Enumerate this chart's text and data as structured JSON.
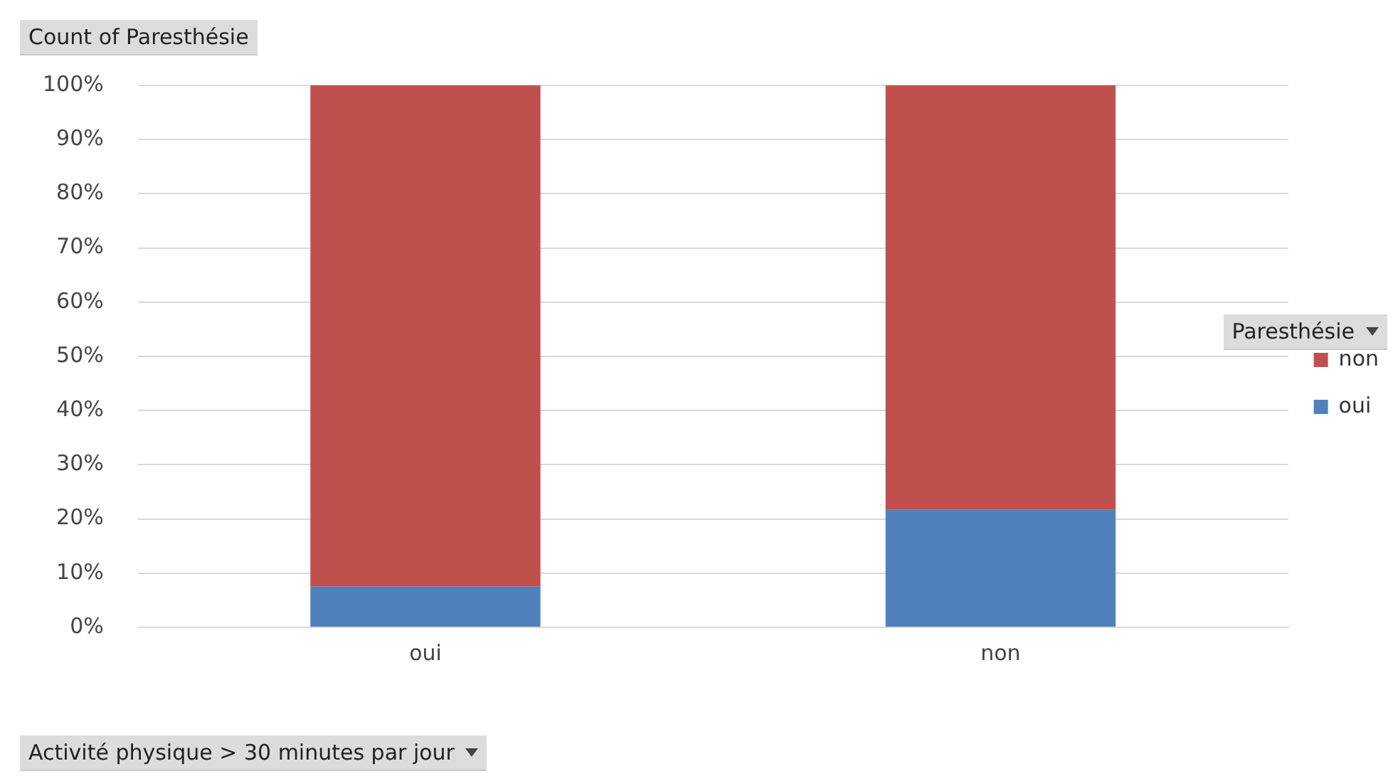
{
  "chart_data": {
    "type": "bar",
    "title": "Count of Paresthésie",
    "xlabel": "Activité physique > 30 minutes par jour",
    "legend_title": "Paresthésie",
    "categories": [
      "oui",
      "non"
    ],
    "series": [
      {
        "name": "oui",
        "color": "#4f81bd",
        "values": [
          7.5,
          21.7
        ]
      },
      {
        "name": "non",
        "color": "#c0504d",
        "values": [
          92.5,
          78.3
        ]
      }
    ],
    "stacked": true,
    "ylim": [
      0,
      100
    ],
    "yticks": [
      {
        "value": 0,
        "label": "0%"
      },
      {
        "value": 10,
        "label": "10%"
      },
      {
        "value": 20,
        "label": "20%"
      },
      {
        "value": 30,
        "label": "30%"
      },
      {
        "value": 40,
        "label": "40%"
      },
      {
        "value": 50,
        "label": "50%"
      },
      {
        "value": 60,
        "label": "60%"
      },
      {
        "value": 70,
        "label": "70%"
      },
      {
        "value": 80,
        "label": "80%"
      },
      {
        "value": 90,
        "label": "90%"
      },
      {
        "value": 100,
        "label": "100%"
      }
    ],
    "grid": "y",
    "legend": "right"
  }
}
